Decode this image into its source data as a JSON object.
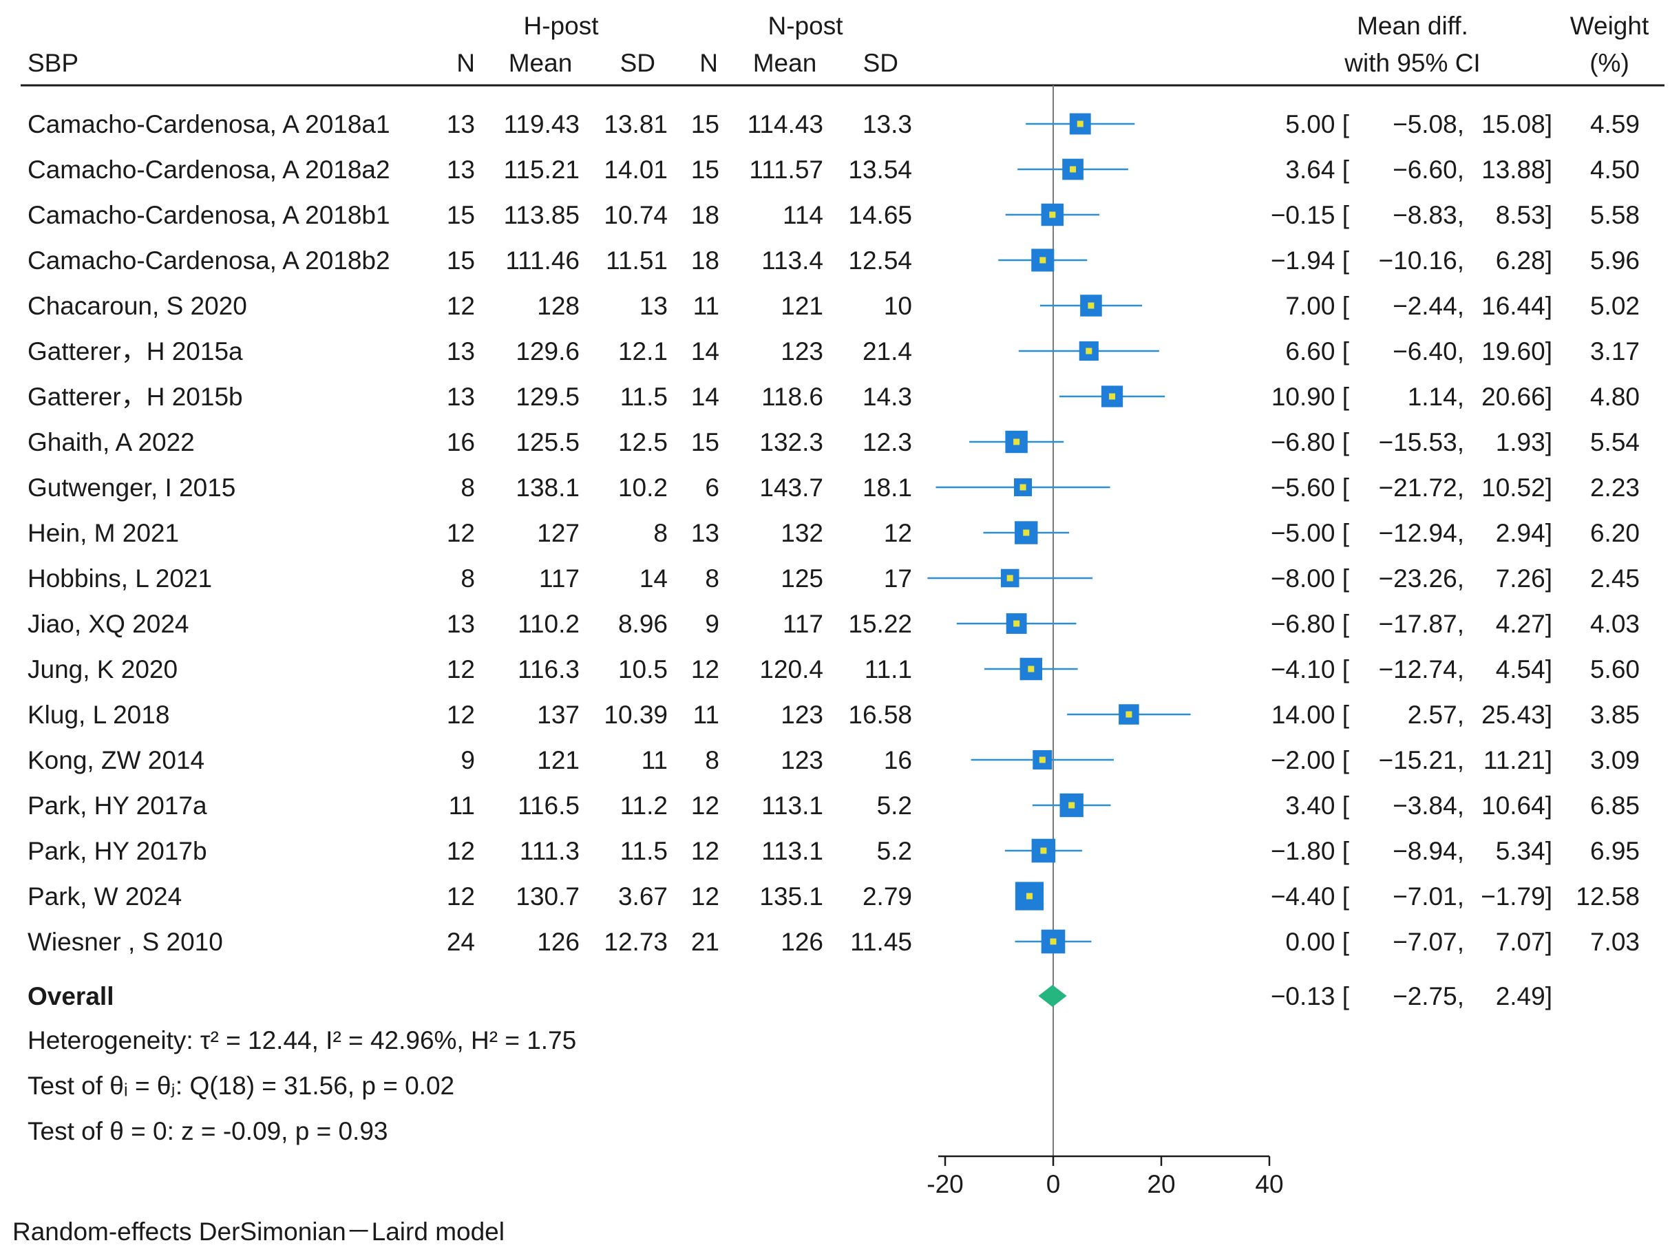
{
  "chart_data": {
    "type": "forest",
    "outcome_label": "SBP",
    "group_headers": [
      "H-post",
      "N-post"
    ],
    "column_headers": [
      "N",
      "Mean",
      "SD",
      "N",
      "Mean",
      "SD"
    ],
    "effect_header": [
      "Mean diff.",
      "with 95% CI"
    ],
    "weight_header": [
      "Weight",
      "(%)"
    ],
    "studies": [
      {
        "name": "Camacho-Cardenosa, A 2018a1",
        "n1": "13",
        "mean1": "119.43",
        "sd1": "13.81",
        "n2": "15",
        "mean2": "114.43",
        "sd2": "13.3",
        "md": 5.0,
        "lo": -5.08,
        "hi": 15.08,
        "md_text": "5.00 [",
        "lo_text": "−5.08,",
        "hi_text": "15.08]",
        "weight": 4.59,
        "weight_text": "4.59"
      },
      {
        "name": "Camacho-Cardenosa, A 2018a2",
        "n1": "13",
        "mean1": "115.21",
        "sd1": "14.01",
        "n2": "15",
        "mean2": "111.57",
        "sd2": "13.54",
        "md": 3.64,
        "lo": -6.6,
        "hi": 13.88,
        "md_text": "3.64 [",
        "lo_text": "−6.60,",
        "hi_text": "13.88]",
        "weight": 4.5,
        "weight_text": "4.50"
      },
      {
        "name": "Camacho-Cardenosa, A 2018b1",
        "n1": "15",
        "mean1": "113.85",
        "sd1": "10.74",
        "n2": "18",
        "mean2": "114",
        "sd2": "14.65",
        "md": -0.15,
        "lo": -8.83,
        "hi": 8.53,
        "md_text": "−0.15 [",
        "lo_text": "−8.83,",
        "hi_text": "8.53]",
        "weight": 5.58,
        "weight_text": "5.58"
      },
      {
        "name": "Camacho-Cardenosa, A 2018b2",
        "n1": "15",
        "mean1": "111.46",
        "sd1": "11.51",
        "n2": "18",
        "mean2": "113.4",
        "sd2": "12.54",
        "md": -1.94,
        "lo": -10.16,
        "hi": 6.28,
        "md_text": "−1.94 [",
        "lo_text": "−10.16,",
        "hi_text": "6.28]",
        "weight": 5.96,
        "weight_text": "5.96"
      },
      {
        "name": "Chacaroun, S 2020",
        "n1": "12",
        "mean1": "128",
        "sd1": "13",
        "n2": "11",
        "mean2": "121",
        "sd2": "10",
        "md": 7.0,
        "lo": -2.44,
        "hi": 16.44,
        "md_text": "7.00 [",
        "lo_text": "−2.44,",
        "hi_text": "16.44]",
        "weight": 5.02,
        "weight_text": "5.02"
      },
      {
        "name": "Gatterer，H 2015a",
        "n1": "13",
        "mean1": "129.6",
        "sd1": "12.1",
        "n2": "14",
        "mean2": "123",
        "sd2": "21.4",
        "md": 6.6,
        "lo": -6.4,
        "hi": 19.6,
        "md_text": "6.60 [",
        "lo_text": "−6.40,",
        "hi_text": "19.60]",
        "weight": 3.17,
        "weight_text": "3.17"
      },
      {
        "name": "Gatterer，H 2015b",
        "n1": "13",
        "mean1": "129.5",
        "sd1": "11.5",
        "n2": "14",
        "mean2": "118.6",
        "sd2": "14.3",
        "md": 10.9,
        "lo": 1.14,
        "hi": 20.66,
        "md_text": "10.90 [",
        "lo_text": "1.14,",
        "hi_text": "20.66]",
        "weight": 4.8,
        "weight_text": "4.80"
      },
      {
        "name": "Ghaith, A 2022",
        "n1": "16",
        "mean1": "125.5",
        "sd1": "12.5",
        "n2": "15",
        "mean2": "132.3",
        "sd2": "12.3",
        "md": -6.8,
        "lo": -15.53,
        "hi": 1.93,
        "md_text": "−6.80 [",
        "lo_text": "−15.53,",
        "hi_text": "1.93]",
        "weight": 5.54,
        "weight_text": "5.54"
      },
      {
        "name": "Gutwenger, I 2015",
        "n1": "8",
        "mean1": "138.1",
        "sd1": "10.2",
        "n2": "6",
        "mean2": "143.7",
        "sd2": "18.1",
        "md": -5.6,
        "lo": -21.72,
        "hi": 10.52,
        "md_text": "−5.60 [",
        "lo_text": "−21.72,",
        "hi_text": "10.52]",
        "weight": 2.23,
        "weight_text": "2.23"
      },
      {
        "name": "Hein, M 2021",
        "n1": "12",
        "mean1": "127",
        "sd1": "8",
        "n2": "13",
        "mean2": "132",
        "sd2": "12",
        "md": -5.0,
        "lo": -12.94,
        "hi": 2.94,
        "md_text": "−5.00 [",
        "lo_text": "−12.94,",
        "hi_text": "2.94]",
        "weight": 6.2,
        "weight_text": "6.20"
      },
      {
        "name": "Hobbins, L 2021",
        "n1": "8",
        "mean1": "117",
        "sd1": "14",
        "n2": "8",
        "mean2": "125",
        "sd2": "17",
        "md": -8.0,
        "lo": -23.26,
        "hi": 7.26,
        "md_text": "−8.00 [",
        "lo_text": "−23.26,",
        "hi_text": "7.26]",
        "weight": 2.45,
        "weight_text": "2.45"
      },
      {
        "name": "Jiao, XQ 2024",
        "n1": "13",
        "mean1": "110.2",
        "sd1": "8.96",
        "n2": "9",
        "mean2": "117",
        "sd2": "15.22",
        "md": -6.8,
        "lo": -17.87,
        "hi": 4.27,
        "md_text": "−6.80 [",
        "lo_text": "−17.87,",
        "hi_text": "4.27]",
        "weight": 4.03,
        "weight_text": "4.03"
      },
      {
        "name": "Jung, K 2020",
        "n1": "12",
        "mean1": "116.3",
        "sd1": "10.5",
        "n2": "12",
        "mean2": "120.4",
        "sd2": "11.1",
        "md": -4.1,
        "lo": -12.74,
        "hi": 4.54,
        "md_text": "−4.10 [",
        "lo_text": "−12.74,",
        "hi_text": "4.54]",
        "weight": 5.6,
        "weight_text": "5.60"
      },
      {
        "name": "Klug, L 2018",
        "n1": "12",
        "mean1": "137",
        "sd1": "10.39",
        "n2": "11",
        "mean2": "123",
        "sd2": "16.58",
        "md": 14.0,
        "lo": 2.57,
        "hi": 25.43,
        "md_text": "14.00 [",
        "lo_text": "2.57,",
        "hi_text": "25.43]",
        "weight": 3.85,
        "weight_text": "3.85"
      },
      {
        "name": "Kong, ZW 2014",
        "n1": "9",
        "mean1": "121",
        "sd1": "11",
        "n2": "8",
        "mean2": "123",
        "sd2": "16",
        "md": -2.0,
        "lo": -15.21,
        "hi": 11.21,
        "md_text": "−2.00 [",
        "lo_text": "−15.21,",
        "hi_text": "11.21]",
        "weight": 3.09,
        "weight_text": "3.09"
      },
      {
        "name": "Park, HY 2017a",
        "n1": "11",
        "mean1": "116.5",
        "sd1": "11.2",
        "n2": "12",
        "mean2": "113.1",
        "sd2": "5.2",
        "md": 3.4,
        "lo": -3.84,
        "hi": 10.64,
        "md_text": "3.40 [",
        "lo_text": "−3.84,",
        "hi_text": "10.64]",
        "weight": 6.85,
        "weight_text": "6.85"
      },
      {
        "name": "Park, HY 2017b",
        "n1": "12",
        "mean1": "111.3",
        "sd1": "11.5",
        "n2": "12",
        "mean2": "113.1",
        "sd2": "5.2",
        "md": -1.8,
        "lo": -8.94,
        "hi": 5.34,
        "md_text": "−1.80 [",
        "lo_text": "−8.94,",
        "hi_text": "5.34]",
        "weight": 6.95,
        "weight_text": "6.95"
      },
      {
        "name": "Park, W 2024",
        "n1": "12",
        "mean1": "130.7",
        "sd1": "3.67",
        "n2": "12",
        "mean2": "135.1",
        "sd2": "2.79",
        "md": -4.4,
        "lo": -7.01,
        "hi": -1.79,
        "md_text": "−4.40 [",
        "lo_text": "−7.01,",
        "hi_text": "−1.79]",
        "weight": 12.58,
        "weight_text": "12.58"
      },
      {
        "name": "Wiesner , S 2010",
        "n1": "24",
        "mean1": "126",
        "sd1": "12.73",
        "n2": "21",
        "mean2": "126",
        "sd2": "11.45",
        "md": 0.0,
        "lo": -7.07,
        "hi": 7.07,
        "md_text": "0.00 [",
        "lo_text": "−7.07,",
        "hi_text": "7.07]",
        "weight": 7.03,
        "weight_text": "7.03"
      }
    ],
    "overall": {
      "label": "Overall",
      "md": -0.13,
      "lo": -2.75,
      "hi": 2.49,
      "md_text": "−0.13 [",
      "lo_text": "−2.75,",
      "hi_text": "2.49]"
    },
    "heterogeneity": [
      "Heterogeneity: τ² = 12.44, I² = 42.96%, H² = 1.75",
      "Test of θᵢ = θⱼ: Q(18) = 31.56, p = 0.02",
      "Test of θ = 0: z = -0.09, p = 0.93"
    ],
    "x_axis": {
      "ticks": [
        -20,
        0,
        20,
        40
      ],
      "tick_labels": [
        "-20",
        "0",
        "20",
        "40"
      ],
      "xlim": [
        -20,
        40
      ]
    },
    "footnote": "Random-effects DerSimonian－Laird model",
    "colors": {
      "square": "#1f7fd8",
      "point": "#e8e33a",
      "ci_line": "#2b8fd4",
      "diamond": "#24b67e",
      "ref_line": "#7a7a7a",
      "text": "#1a1a1a"
    }
  }
}
